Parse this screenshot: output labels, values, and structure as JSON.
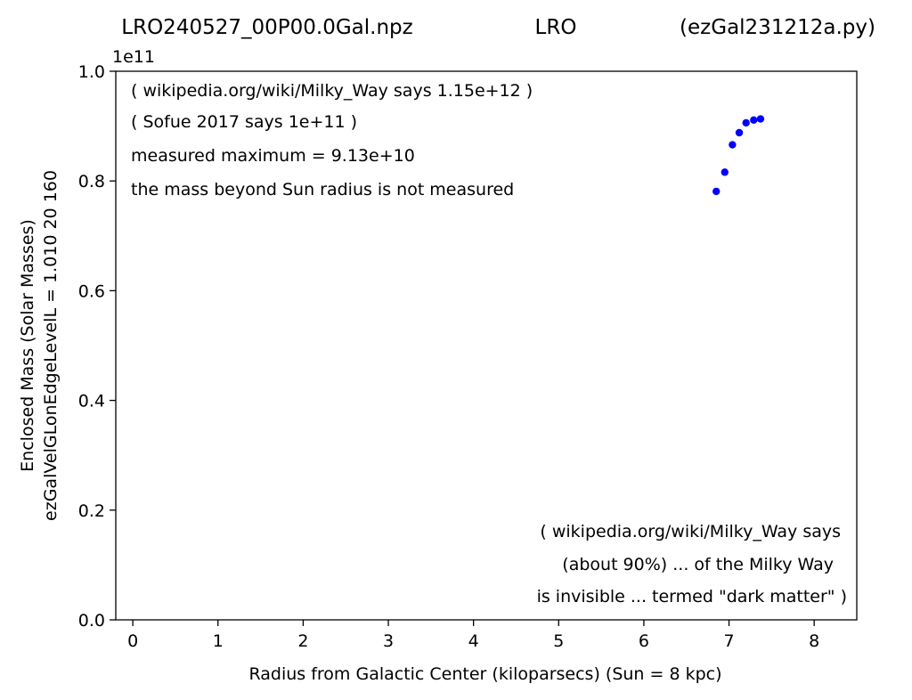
{
  "header": {
    "file_name": "LRO240527_00P00.0Gal.npz",
    "source": "LRO",
    "script_name": "(ezGal231212a.py)"
  },
  "chart_data": {
    "type": "scatter",
    "xlabel": "Radius from Galactic Center (kiloparsecs)  (Sun = 8 kpc)",
    "ylabel_line1": "Enclosed Mass (Solar Masses)",
    "ylabel_line2": "ezGalVelGLonEdgeLevelL = 1.010  20  160",
    "y_offset_label": "1e11",
    "xlim": [
      -0.2,
      8.5
    ],
    "ylim": [
      0.0,
      1.0
    ],
    "x_ticks": [
      0,
      1,
      2,
      3,
      4,
      5,
      6,
      7,
      8
    ],
    "y_ticks": [
      0.0,
      0.2,
      0.4,
      0.6,
      0.8,
      1.0
    ],
    "y_tick_labels": [
      "0.0",
      "0.2",
      "0.4",
      "0.6",
      "0.8",
      "1.0"
    ],
    "grid": false,
    "marker_color": "#0000ff",
    "series": [
      {
        "x": [
          6.85,
          6.95,
          7.04,
          7.12,
          7.2,
          7.29,
          7.37
        ],
        "y": [
          0.781,
          0.816,
          0.866,
          0.888,
          0.906,
          0.911,
          0.913
        ]
      }
    ],
    "annotations_top": [
      "( wikipedia.org/wiki/Milky_Way says 1.15e+12 )",
      "( Sofue 2017 says 1e+11 )",
      "measured maximum = 9.13e+10",
      "the mass beyond Sun radius is not measured"
    ],
    "annotations_bottom": [
      "( wikipedia.org/wiki/Milky_Way says",
      "(about 90%) ... of the Milky Way",
      "is invisible ... termed \"dark matter\" )"
    ]
  }
}
